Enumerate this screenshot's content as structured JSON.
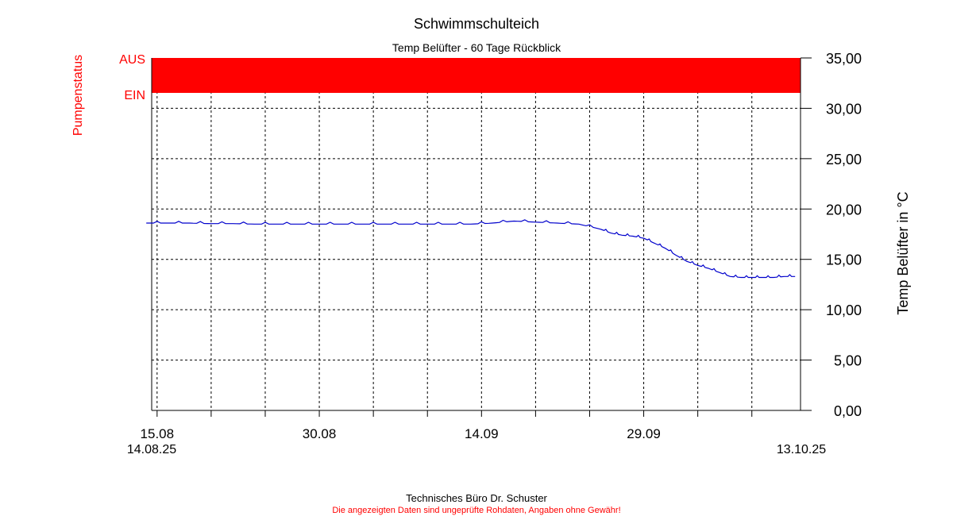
{
  "chart_data": {
    "type": "line",
    "title": "Schwimmschulteich",
    "subtitle": "Temp Belüfter - 60 Tage Rückblick",
    "ylabel": "Temp Belüfter in °C",
    "ylim": [
      0,
      35
    ],
    "yticks": [
      "0,00",
      "5,00",
      "10,00",
      "15,00",
      "20,00",
      "25,00",
      "30,00",
      "35,00"
    ],
    "grid": true,
    "x_date_labels": [
      {
        "label": "15.08",
        "date": "2025-08-15"
      },
      {
        "label": "30.08",
        "date": "2025-08-30"
      },
      {
        "label": "14.09",
        "date": "2025-09-14"
      },
      {
        "label": "29.09",
        "date": "2025-09-29"
      }
    ],
    "x_range_labels": {
      "start": "14.08.25",
      "end": "13.10.25"
    },
    "x_range": [
      "2025-08-14T12:00",
      "2025-10-13T12:00"
    ],
    "line_color": "#0000cc",
    "series": [
      {
        "x": [
          "2025-08-14",
          "2025-08-16",
          "2025-08-18",
          "2025-08-20",
          "2025-08-22",
          "2025-08-24",
          "2025-08-26",
          "2025-08-28",
          "2025-08-30",
          "2025-09-01",
          "2025-09-03",
          "2025-09-05",
          "2025-09-07",
          "2025-09-09",
          "2025-09-11",
          "2025-09-13",
          "2025-09-15",
          "2025-09-17",
          "2025-09-19",
          "2025-09-21",
          "2025-09-23",
          "2025-09-25",
          "2025-09-26",
          "2025-09-27",
          "2025-09-28",
          "2025-09-29",
          "2025-09-30",
          "2025-10-01",
          "2025-10-02",
          "2025-10-03",
          "2025-10-04",
          "2025-10-05",
          "2025-10-06",
          "2025-10-07",
          "2025-10-08",
          "2025-10-09",
          "2025-10-10",
          "2025-10-11",
          "2025-10-12",
          "2025-10-13"
        ],
        "y": [
          18.6,
          18.6,
          18.6,
          18.55,
          18.55,
          18.5,
          18.5,
          18.5,
          18.5,
          18.5,
          18.5,
          18.5,
          18.5,
          18.5,
          18.5,
          18.5,
          18.6,
          18.8,
          18.7,
          18.6,
          18.5,
          18.0,
          17.6,
          17.4,
          17.3,
          17.1,
          16.6,
          16.1,
          15.4,
          14.8,
          14.4,
          14.1,
          13.7,
          13.3,
          13.2,
          13.2,
          13.2,
          13.2,
          13.3,
          13.3
        ]
      }
    ]
  },
  "pump_status": {
    "axis_title": "Pumpenstatus",
    "label_off": "AUS",
    "label_on": "EIN",
    "color": "#ff0000",
    "state": "AUS"
  },
  "footer": {
    "company": "Technisches Büro Dr. Schuster",
    "disclaimer": "Die angezeigten Daten sind ungeprüfte Rohdaten, Angaben ohne Gewähr!"
  }
}
